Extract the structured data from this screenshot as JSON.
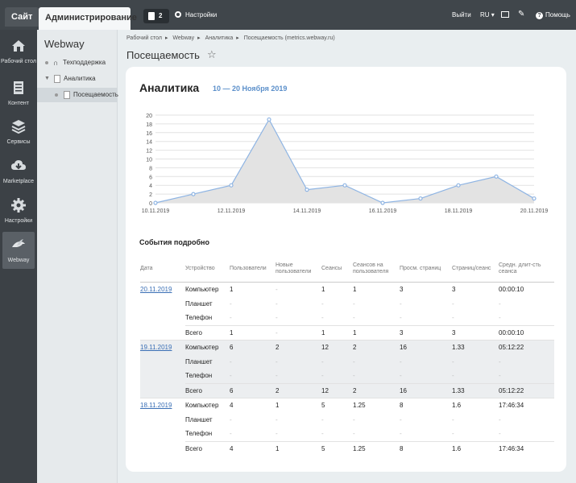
{
  "topbar": {
    "site_tab": "Сайт",
    "admin_tab": "Администрирование",
    "notifications_count": "2",
    "settings_label": "Настройки",
    "logout_label": "Выйти",
    "language": "RU",
    "help_label": "Помощь",
    "icons": [
      "flag-icon",
      "gear-icon",
      "monitor-icon",
      "pin-icon",
      "help-icon"
    ]
  },
  "iconbar": {
    "items": [
      {
        "label": "Рабочий стол",
        "icon": "home-icon"
      },
      {
        "label": "Контент",
        "icon": "document-icon"
      },
      {
        "label": "Сервисы",
        "icon": "layers-icon"
      },
      {
        "label": "Marketplace",
        "icon": "cloud-download-icon"
      },
      {
        "label": "Настройки",
        "icon": "gear-icon"
      },
      {
        "label": "Webway",
        "icon": "bird-icon"
      }
    ],
    "active": "Webway"
  },
  "sidebar": {
    "title": "Webway",
    "items": [
      {
        "label": "Техподдержка",
        "icon": "headset-icon"
      },
      {
        "label": "Аналитика",
        "icon": "document-icon"
      },
      {
        "label": "Посещаемость",
        "icon": "document-icon"
      }
    ]
  },
  "breadcrumb": [
    "Рабочий стол",
    "Webway",
    "Аналитика",
    "Посещаемость (metrics.webway.ru)"
  ],
  "breadcrumb_separator": "▸",
  "page_title": "Посещаемость",
  "card": {
    "title": "Аналитика",
    "date_range": "10 — 20 Ноября 2019",
    "events_title": "События подробно"
  },
  "chart_data": {
    "type": "area",
    "x": [
      "10.11.2019",
      "11.11.2019",
      "12.11.2019",
      "13.11.2019",
      "14.11.2019",
      "15.11.2019",
      "16.11.2019",
      "17.11.2019",
      "18.11.2019",
      "19.11.2019",
      "20.11.2019"
    ],
    "x_tick_labels": [
      "10.11.2019",
      "12.11.2019",
      "14.11.2019",
      "16.11.2019",
      "18.11.2019",
      "20.11.2019"
    ],
    "values": [
      0,
      2,
      4,
      19,
      3,
      4,
      0,
      1,
      4,
      6,
      1
    ],
    "y_ticks": [
      0,
      2,
      4,
      6,
      8,
      10,
      12,
      14,
      16,
      18,
      20
    ],
    "ylim": [
      0,
      20
    ],
    "grid": true,
    "line_color": "#8eb4e3",
    "fill_color": "#e3e3e3"
  },
  "table": {
    "headers": [
      "Дата",
      "Устройство",
      "Пользователи",
      "Новые пользователи",
      "Сеансы",
      "Сеансов на пользователя",
      "Просм. страниц",
      "Страниц/сеанс",
      "Средн. длит-сть сеанса"
    ],
    "groups": [
      {
        "date": "20.11.2019",
        "rows": [
          [
            "Компьютер",
            "1",
            "-",
            "1",
            "1",
            "3",
            "3",
            "00:00:10"
          ],
          [
            "Планшет",
            "-",
            "-",
            "-",
            "-",
            "-",
            "-",
            "-"
          ],
          [
            "Телефон",
            "-",
            "-",
            "-",
            "-",
            "-",
            "-",
            "-"
          ],
          [
            "Всего",
            "1",
            "-",
            "1",
            "1",
            "3",
            "3",
            "00:00:10"
          ]
        ]
      },
      {
        "date": "19.11.2019",
        "rows": [
          [
            "Компьютер",
            "6",
            "2",
            "12",
            "2",
            "16",
            "1.33",
            "05:12:22"
          ],
          [
            "Планшет",
            "-",
            "-",
            "-",
            "-",
            "-",
            "-",
            "-"
          ],
          [
            "Телефон",
            "-",
            "-",
            "-",
            "-",
            "-",
            "-",
            "-"
          ],
          [
            "Всего",
            "6",
            "2",
            "12",
            "2",
            "16",
            "1.33",
            "05:12:22"
          ]
        ]
      },
      {
        "date": "18.11.2019",
        "rows": [
          [
            "Компьютер",
            "4",
            "1",
            "5",
            "1.25",
            "8",
            "1.6",
            "17:46:34"
          ],
          [
            "Планшет",
            "-",
            "-",
            "-",
            "-",
            "-",
            "-",
            "-"
          ],
          [
            "Телефон",
            "-",
            "-",
            "-",
            "-",
            "-",
            "-",
            "-"
          ],
          [
            "Всего",
            "4",
            "1",
            "5",
            "1.25",
            "8",
            "1.6",
            "17:46:34"
          ]
        ]
      }
    ]
  }
}
